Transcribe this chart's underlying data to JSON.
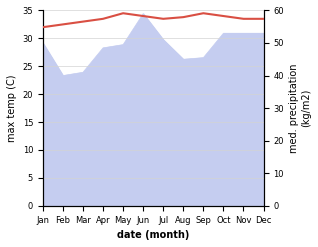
{
  "months": [
    "Jan",
    "Feb",
    "Mar",
    "Apr",
    "May",
    "Jun",
    "Jul",
    "Aug",
    "Sep",
    "Oct",
    "Nov",
    "Dec"
  ],
  "month_x": [
    0,
    1,
    2,
    3,
    4,
    5,
    6,
    7,
    8,
    9,
    10,
    11
  ],
  "max_temp": [
    32.0,
    32.5,
    33.0,
    33.5,
    34.5,
    34.0,
    33.5,
    33.8,
    34.5,
    34.0,
    33.5,
    33.5
  ],
  "precipitation": [
    50.0,
    40.0,
    41.0,
    48.5,
    49.5,
    59.0,
    51.0,
    45.0,
    45.5,
    53.0,
    53.0,
    53.0
  ],
  "temp_color": "#d94f43",
  "precip_fill_color": "#c5cdf0",
  "precip_line_color": "#c5cdf0",
  "bg_color": "#ffffff",
  "ylim_temp": [
    0,
    35
  ],
  "ylim_precip": [
    0,
    60
  ],
  "xlabel": "date (month)",
  "ylabel_left": "max temp (C)",
  "ylabel_right": "med. precipitation\n(kg/m2)",
  "temp_yticks": [
    0,
    5,
    10,
    15,
    20,
    25,
    30,
    35
  ],
  "precip_yticks": [
    0,
    10,
    20,
    30,
    40,
    50,
    60
  ]
}
